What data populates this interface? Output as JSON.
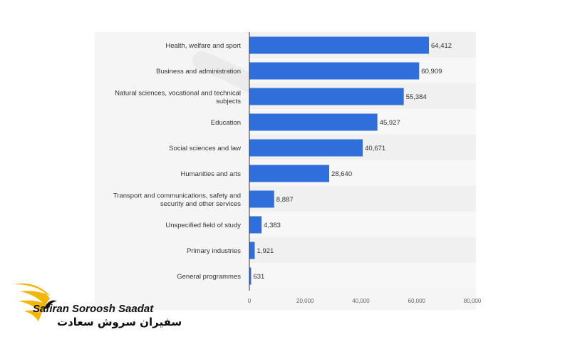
{
  "chart_data": {
    "type": "bar",
    "orientation": "horizontal",
    "categories": [
      [
        "Health, welfare and sport"
      ],
      [
        "Business and administration"
      ],
      [
        "Natural sciences, vocational and technical",
        "subjects"
      ],
      [
        "Education"
      ],
      [
        "Social sciences and law"
      ],
      [
        "Humanities and arts"
      ],
      [
        "Transport and communications, safety and",
        "security and other services"
      ],
      [
        "Unspecified field of study"
      ],
      [
        "Primary industries"
      ],
      [
        "General programmes"
      ]
    ],
    "values": [
      64412,
      60909,
      55384,
      45927,
      40671,
      28640,
      8887,
      4383,
      1921,
      631
    ],
    "value_labels": [
      "64,412",
      "60,909",
      "55,384",
      "45,927",
      "40,671",
      "28,640",
      "8,887",
      "4,383",
      "1,921",
      "631"
    ],
    "xlim": [
      0,
      80000
    ],
    "xticks": [
      "0",
      "20,000",
      "40,000",
      "60,000",
      "80,000"
    ],
    "grid": true,
    "bar_color": "#2f6fdb",
    "title": "",
    "xlabel": "",
    "ylabel": ""
  },
  "logo": {
    "text_en": "Safiran Soroosh Saadat",
    "text_fa": "سفیران سروش سعادت",
    "color": "#f2b705"
  }
}
